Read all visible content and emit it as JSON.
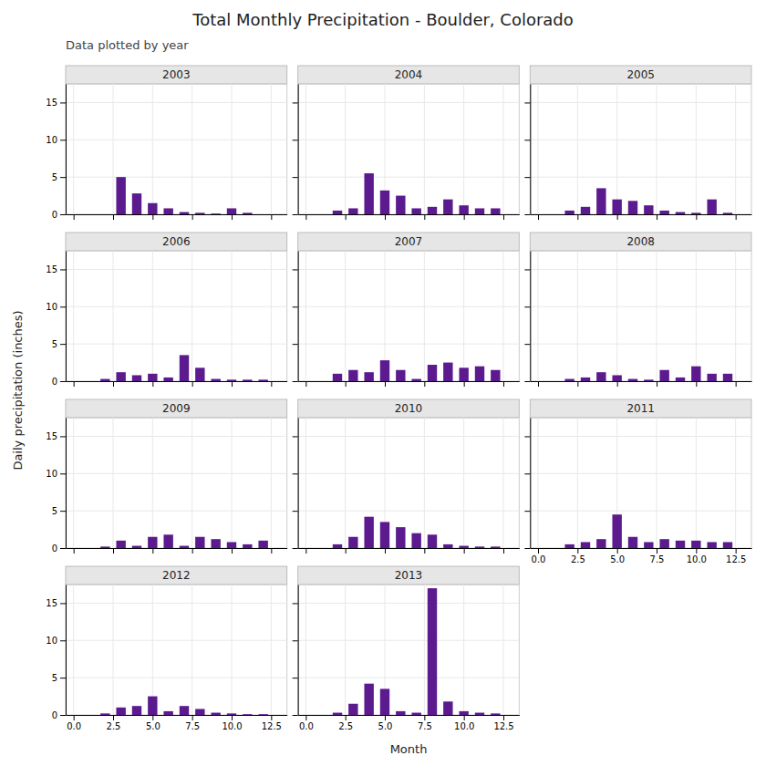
{
  "title": "Total Monthly Precipitation - Boulder, Colorado",
  "subtitle": "Data plotted by year",
  "x_label": "Month",
  "y_label": "Daily precipitation (inches)",
  "chart_data": [
    {
      "type": "bar",
      "title": "2003",
      "x": [
        3,
        4,
        5,
        6,
        7,
        8,
        9,
        10,
        11
      ],
      "values": [
        5.0,
        2.8,
        1.5,
        0.8,
        0.3,
        0.2,
        0.1,
        0.8,
        0.2
      ],
      "color": "#5b1a8e",
      "xlim": [
        -0.5,
        13.5
      ],
      "ylim": [
        0,
        17.5
      ],
      "xticks": [
        {
          "value": 0.0,
          "label": "0.0"
        },
        {
          "value": 2.5,
          "label": "2.5"
        },
        {
          "value": 5.0,
          "label": "5.0"
        },
        {
          "value": 7.5,
          "label": "7.5"
        },
        {
          "value": 10.0,
          "label": "10.0"
        },
        {
          "value": 12.5,
          "label": "12.5"
        }
      ],
      "yticks": [
        0,
        5,
        10,
        15
      ],
      "grid": true,
      "tick_labels": "y"
    },
    {
      "type": "bar",
      "title": "2004",
      "x": [
        2,
        3,
        4,
        5,
        6,
        7,
        8,
        9,
        10,
        11,
        12
      ],
      "values": [
        0.5,
        0.8,
        5.5,
        3.2,
        2.5,
        0.8,
        1.0,
        2.0,
        1.2,
        0.8,
        0.8
      ],
      "color": "#5b1a8e",
      "xlim": [
        -0.5,
        13.5
      ],
      "ylim": [
        0,
        17.5
      ],
      "xticks": [
        {
          "value": 0.0,
          "label": "0.0"
        },
        {
          "value": 2.5,
          "label": "2.5"
        },
        {
          "value": 5.0,
          "label": "5.0"
        },
        {
          "value": 7.5,
          "label": "7.5"
        },
        {
          "value": 10.0,
          "label": "10.0"
        },
        {
          "value": 12.5,
          "label": "12.5"
        }
      ],
      "yticks": [
        0,
        5,
        10,
        15
      ],
      "grid": true,
      "tick_labels": false
    },
    {
      "type": "bar",
      "title": "2005",
      "x": [
        2,
        3,
        4,
        5,
        6,
        7,
        8,
        9,
        10,
        11,
        12
      ],
      "values": [
        0.5,
        1.0,
        3.5,
        2.0,
        1.8,
        1.2,
        0.5,
        0.3,
        0.2,
        2.0,
        0.2
      ],
      "color": "#5b1a8e",
      "xlim": [
        -0.5,
        13.5
      ],
      "ylim": [
        0,
        17.5
      ],
      "xticks": [
        {
          "value": 0.0,
          "label": "0.0"
        },
        {
          "value": 2.5,
          "label": "2.5"
        },
        {
          "value": 5.0,
          "label": "5.0"
        },
        {
          "value": 7.5,
          "label": "7.5"
        },
        {
          "value": 10.0,
          "label": "10.0"
        },
        {
          "value": 12.5,
          "label": "12.5"
        }
      ],
      "yticks": [
        0,
        5,
        10,
        15
      ],
      "grid": true,
      "tick_labels": false
    },
    {
      "type": "bar",
      "title": "2006",
      "x": [
        2,
        3,
        4,
        5,
        6,
        7,
        8,
        9,
        10,
        11,
        12
      ],
      "values": [
        0.3,
        1.2,
        0.8,
        1.0,
        0.5,
        3.5,
        1.8,
        0.3,
        0.2,
        0.2,
        0.2
      ],
      "color": "#5b1a8e",
      "xlim": [
        -0.5,
        13.5
      ],
      "ylim": [
        0,
        17.5
      ],
      "xticks": [
        {
          "value": 0.0,
          "label": "0.0"
        },
        {
          "value": 2.5,
          "label": "2.5"
        },
        {
          "value": 5.0,
          "label": "5.0"
        },
        {
          "value": 7.5,
          "label": "7.5"
        },
        {
          "value": 10.0,
          "label": "10.0"
        },
        {
          "value": 12.5,
          "label": "12.5"
        }
      ],
      "yticks": [
        0,
        5,
        10,
        15
      ],
      "grid": true,
      "tick_labels": "y"
    },
    {
      "type": "bar",
      "title": "2007",
      "x": [
        2,
        3,
        4,
        5,
        6,
        7,
        8,
        9,
        10,
        11,
        12
      ],
      "values": [
        1.0,
        1.5,
        1.2,
        2.8,
        1.5,
        0.3,
        2.2,
        2.5,
        1.8,
        2.0,
        1.5
      ],
      "color": "#5b1a8e",
      "xlim": [
        -0.5,
        13.5
      ],
      "ylim": [
        0,
        17.5
      ],
      "xticks": [
        {
          "value": 0.0,
          "label": "0.0"
        },
        {
          "value": 2.5,
          "label": "2.5"
        },
        {
          "value": 5.0,
          "label": "5.0"
        },
        {
          "value": 7.5,
          "label": "7.5"
        },
        {
          "value": 10.0,
          "label": "10.0"
        },
        {
          "value": 12.5,
          "label": "12.5"
        }
      ],
      "yticks": [
        0,
        5,
        10,
        15
      ],
      "grid": true,
      "tick_labels": false
    },
    {
      "type": "bar",
      "title": "2008",
      "x": [
        2,
        3,
        4,
        5,
        6,
        7,
        8,
        9,
        10,
        11,
        12
      ],
      "values": [
        0.3,
        0.5,
        1.2,
        0.8,
        0.3,
        0.2,
        1.5,
        0.5,
        2.0,
        1.0,
        1.0
      ],
      "color": "#5b1a8e",
      "xlim": [
        -0.5,
        13.5
      ],
      "ylim": [
        0,
        17.5
      ],
      "xticks": [
        {
          "value": 0.0,
          "label": "0.0"
        },
        {
          "value": 2.5,
          "label": "2.5"
        },
        {
          "value": 5.0,
          "label": "5.0"
        },
        {
          "value": 7.5,
          "label": "7.5"
        },
        {
          "value": 10.0,
          "label": "10.0"
        },
        {
          "value": 12.5,
          "label": "12.5"
        }
      ],
      "yticks": [
        0,
        5,
        10,
        15
      ],
      "grid": true,
      "tick_labels": false
    },
    {
      "type": "bar",
      "title": "2009",
      "x": [
        2,
        3,
        4,
        5,
        6,
        7,
        8,
        9,
        10,
        11,
        12
      ],
      "values": [
        0.2,
        1.0,
        0.3,
        1.5,
        1.8,
        0.3,
        1.5,
        1.2,
        0.8,
        0.5,
        1.0
      ],
      "color": "#5b1a8e",
      "xlim": [
        -0.5,
        13.5
      ],
      "ylim": [
        0,
        17.5
      ],
      "xticks": [
        {
          "value": 0.0,
          "label": "0.0"
        },
        {
          "value": 2.5,
          "label": "2.5"
        },
        {
          "value": 5.0,
          "label": "5.0"
        },
        {
          "value": 7.5,
          "label": "7.5"
        },
        {
          "value": 10.0,
          "label": "10.0"
        },
        {
          "value": 12.5,
          "label": "12.5"
        }
      ],
      "yticks": [
        0,
        5,
        10,
        15
      ],
      "grid": true,
      "tick_labels": "y"
    },
    {
      "type": "bar",
      "title": "2010",
      "x": [
        2,
        3,
        4,
        5,
        6,
        7,
        8,
        9,
        10,
        11,
        12
      ],
      "values": [
        0.5,
        1.5,
        4.2,
        3.5,
        2.8,
        2.0,
        1.8,
        0.5,
        0.3,
        0.2,
        0.2
      ],
      "color": "#5b1a8e",
      "xlim": [
        -0.5,
        13.5
      ],
      "ylim": [
        0,
        17.5
      ],
      "xticks": [
        {
          "value": 0.0,
          "label": "0.0"
        },
        {
          "value": 2.5,
          "label": "2.5"
        },
        {
          "value": 5.0,
          "label": "5.0"
        },
        {
          "value": 7.5,
          "label": "7.5"
        },
        {
          "value": 10.0,
          "label": "10.0"
        },
        {
          "value": 12.5,
          "label": "12.5"
        }
      ],
      "yticks": [
        0,
        5,
        10,
        15
      ],
      "grid": true,
      "tick_labels": false
    },
    {
      "type": "bar",
      "title": "2011",
      "x": [
        2,
        3,
        4,
        5,
        6,
        7,
        8,
        9,
        10,
        11,
        12
      ],
      "values": [
        0.5,
        0.8,
        1.2,
        4.5,
        1.5,
        0.8,
        1.2,
        1.0,
        1.0,
        0.8,
        0.8
      ],
      "color": "#5b1a8e",
      "xlim": [
        -0.5,
        13.5
      ],
      "ylim": [
        0,
        17.5
      ],
      "xticks": [
        {
          "value": 0.0,
          "label": "0.0"
        },
        {
          "value": 2.5,
          "label": "2.5"
        },
        {
          "value": 5.0,
          "label": "5.0"
        },
        {
          "value": 7.5,
          "label": "7.5"
        },
        {
          "value": 10.0,
          "label": "10.0"
        },
        {
          "value": 12.5,
          "label": "12.5"
        }
      ],
      "yticks": [
        0,
        5,
        10,
        15
      ],
      "grid": true,
      "tick_labels": "x"
    },
    {
      "type": "bar",
      "title": "2012",
      "x": [
        2,
        3,
        4,
        5,
        6,
        7,
        8,
        9,
        10,
        11,
        12
      ],
      "values": [
        0.2,
        1.0,
        1.2,
        2.5,
        0.5,
        1.2,
        0.8,
        0.3,
        0.2,
        0.1,
        0.1
      ],
      "color": "#5b1a8e",
      "xlim": [
        -0.5,
        13.5
      ],
      "ylim": [
        0,
        17.5
      ],
      "xticks": [
        {
          "value": 0.0,
          "label": "0.0"
        },
        {
          "value": 2.5,
          "label": "2.5"
        },
        {
          "value": 5.0,
          "label": "5.0"
        },
        {
          "value": 7.5,
          "label": "7.5"
        },
        {
          "value": 10.0,
          "label": "10.0"
        },
        {
          "value": 12.5,
          "label": "12.5"
        }
      ],
      "yticks": [
        0,
        5,
        10,
        15
      ],
      "grid": true
    },
    {
      "type": "bar",
      "title": "2013",
      "x": [
        2,
        3,
        4,
        5,
        6,
        7,
        8,
        9,
        10,
        11,
        12
      ],
      "values": [
        0.3,
        1.5,
        4.2,
        3.5,
        0.5,
        0.3,
        17.0,
        1.8,
        0.5,
        0.3,
        0.2
      ],
      "color": "#5b1a8e",
      "xlim": [
        -0.5,
        13.5
      ],
      "ylim": [
        0,
        17.5
      ],
      "xticks": [
        {
          "value": 0.0,
          "label": "0.0"
        },
        {
          "value": 2.5,
          "label": "2.5"
        },
        {
          "value": 5.0,
          "label": "5.0"
        },
        {
          "value": 7.5,
          "label": "7.5"
        },
        {
          "value": 10.0,
          "label": "10.0"
        },
        {
          "value": 12.5,
          "label": "12.5"
        }
      ],
      "yticks": [
        0,
        5,
        10,
        15
      ],
      "grid": true,
      "tick_labels": "x"
    }
  ]
}
